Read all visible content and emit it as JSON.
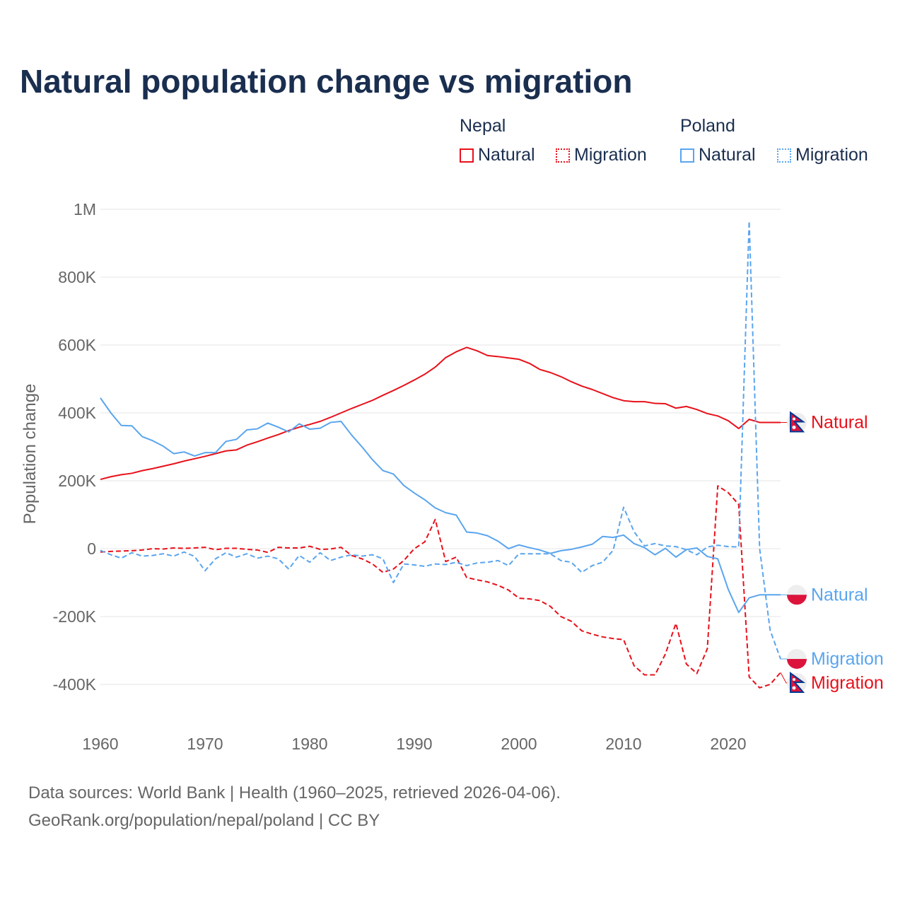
{
  "title": "Natural population change vs migration",
  "legend": {
    "groups": [
      {
        "name": "Nepal",
        "items": [
          {
            "label": "Natural",
            "style": "solid"
          },
          {
            "label": "Migration",
            "style": "dotted"
          }
        ],
        "color": "#e8101a"
      },
      {
        "name": "Poland",
        "items": [
          {
            "label": "Natural",
            "style": "solid"
          },
          {
            "label": "Migration",
            "style": "dotted"
          }
        ],
        "color": "#5aa5ee"
      }
    ]
  },
  "footer": {
    "line1": "Data sources: World Bank | Health (1960–2025, retrieved 2026-04-06).",
    "line2": "GeoRank.org/population/nepal/poland | CC BY"
  },
  "chart_data": {
    "type": "line",
    "title": "Natural population change vs migration",
    "xlabel": "",
    "ylabel": "Population change",
    "xlim": [
      1960,
      2025
    ],
    "ylim": [
      -500000,
      1000000
    ],
    "x_ticks": [
      1960,
      1970,
      1980,
      1990,
      2000,
      2010,
      2020
    ],
    "x_tick_labels": [
      "1960",
      "1970",
      "1980",
      "1990",
      "2000",
      "2010",
      "2020"
    ],
    "y_ticks": [
      -400000,
      -200000,
      0,
      200000,
      400000,
      600000,
      800000,
      1000000
    ],
    "y_tick_labels": [
      "-400K",
      "-200K",
      "0",
      "200K",
      "400K",
      "600K",
      "800K",
      "1M"
    ],
    "grid": true,
    "x_start": 1960,
    "series": [
      {
        "name": "Nepal Natural",
        "label": "Natural",
        "country": "nepal",
        "color": "#e8101a",
        "dash": "solid",
        "values": [
          204,
          212,
          218,
          222,
          230,
          236,
          243,
          250,
          258,
          265,
          272,
          280,
          288,
          291,
          305,
          315,
          326,
          336,
          348,
          358,
          366,
          375,
          387,
          400,
          413,
          425,
          437,
          452,
          466,
          481,
          497,
          514,
          535,
          563,
          580,
          593,
          583,
          569,
          566,
          562,
          558,
          546,
          528,
          519,
          507,
          492,
          479,
          469,
          457,
          445,
          436,
          433,
          433,
          428,
          427,
          414,
          419,
          410,
          398,
          391,
          377,
          354,
          381,
          372,
          372,
          372
        ]
      },
      {
        "name": "Nepal Migration",
        "label": "Migration",
        "country": "nepal",
        "color": "#e8101a",
        "dash": "dashed",
        "values": [
          -10,
          -8,
          -7,
          -6,
          -4,
          0,
          -1,
          2,
          1,
          2,
          4,
          -3,
          1,
          1,
          -2,
          -4,
          -11,
          4,
          2,
          2,
          7,
          -2,
          -1,
          4,
          -20,
          -30,
          -45,
          -70,
          -60,
          -35,
          0,
          20,
          86,
          -38,
          -25,
          -85,
          -92,
          -98,
          -108,
          -122,
          -146,
          -148,
          -153,
          -170,
          -200,
          -214,
          -242,
          -252,
          -260,
          -265,
          -268,
          -345,
          -372,
          -372,
          -310,
          -220,
          -340,
          -368,
          -295,
          185,
          165,
          130,
          -378,
          -410,
          -400,
          -365
        ]
      },
      {
        "name": "Poland Natural",
        "label": "Natural",
        "country": "poland",
        "color": "#5aa5ee",
        "dash": "solid",
        "values": [
          444,
          400,
          363,
          362,
          330,
          318,
          302,
          280,
          285,
          273,
          283,
          283,
          316,
          322,
          350,
          353,
          370,
          358,
          344,
          368,
          352,
          355,
          372,
          375,
          335,
          300,
          262,
          230,
          220,
          186,
          164,
          144,
          120,
          106,
          99,
          49,
          46,
          38,
          22,
          0,
          11,
          3,
          -4,
          -14,
          -6,
          -2,
          5,
          13,
          36,
          33,
          40,
          15,
          3,
          -18,
          1,
          -25,
          -3,
          2,
          -23,
          -30,
          -120,
          -188,
          -145,
          -136,
          -136,
          -136
        ]
      },
      {
        "name": "Poland Migration",
        "label": "Migration",
        "country": "poland",
        "color": "#5aa5ee",
        "dash": "dashed",
        "values": [
          -5,
          -18,
          -28,
          -12,
          -22,
          -20,
          -15,
          -22,
          -10,
          -23,
          -65,
          -30,
          -12,
          -25,
          -15,
          -28,
          -22,
          -30,
          -60,
          -20,
          -40,
          -12,
          -35,
          -25,
          -18,
          -22,
          -18,
          -30,
          -100,
          -45,
          -48,
          -52,
          -45,
          -47,
          -40,
          -50,
          -42,
          -40,
          -35,
          -50,
          -15,
          -15,
          -15,
          -15,
          -35,
          -40,
          -70,
          -50,
          -40,
          -5,
          122,
          50,
          8,
          15,
          8,
          6,
          -3,
          -18,
          5,
          10,
          6,
          5,
          965,
          0,
          -240,
          -325
        ]
      }
    ],
    "value_unit": "thousands",
    "legend_position": "top-right"
  }
}
